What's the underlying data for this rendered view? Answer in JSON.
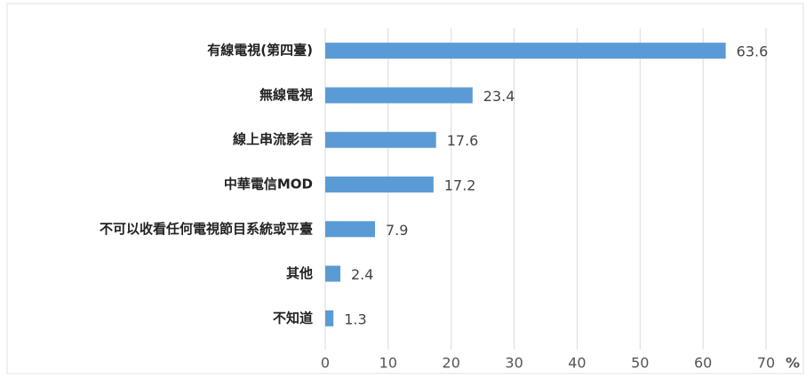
{
  "chart_data": {
    "type": "bar",
    "orientation": "horizontal",
    "categories": [
      "有線電視(第四臺)",
      "無線電視",
      "線上串流影音",
      "中華電信MOD",
      "不可以收看任何電視節目系統或平臺",
      "其他",
      "不知道"
    ],
    "values": [
      63.6,
      23.4,
      17.6,
      17.2,
      7.9,
      2.4,
      1.3
    ],
    "color": "#5b9bd5",
    "xlim": [
      0,
      70
    ],
    "xticks": [
      0,
      10,
      20,
      30,
      40,
      50,
      60,
      70
    ],
    "xlabel": "%",
    "grid": true
  }
}
